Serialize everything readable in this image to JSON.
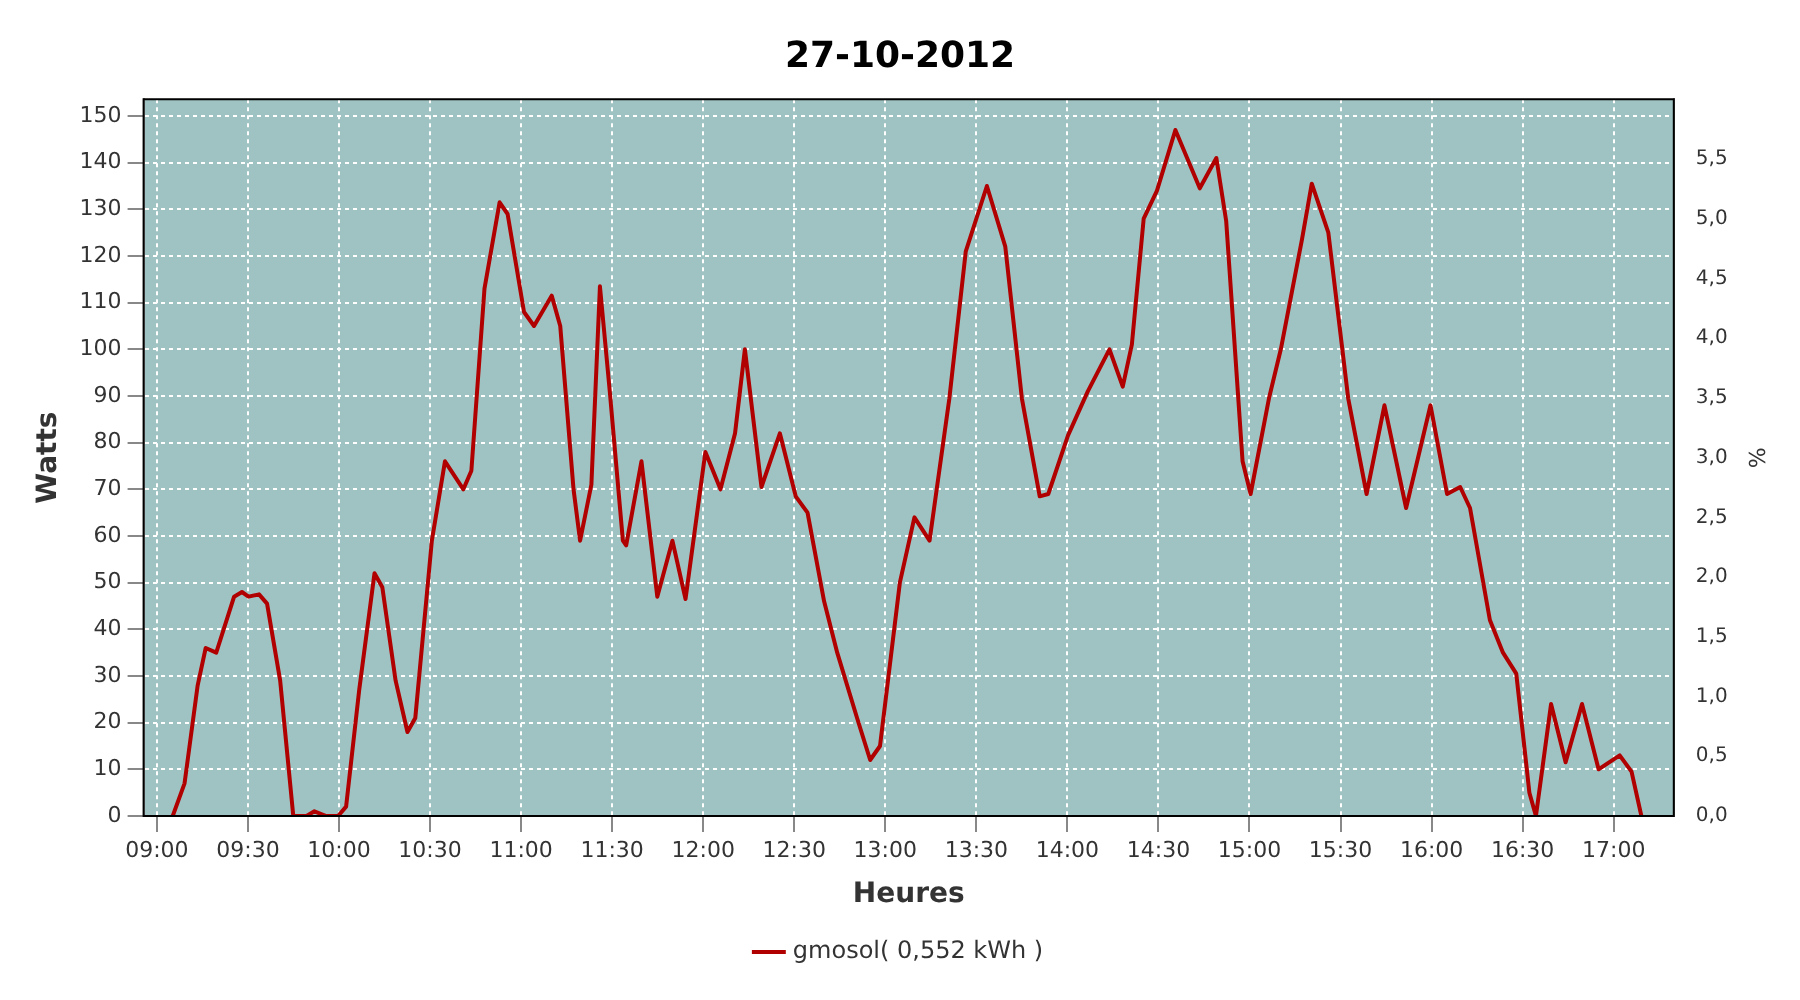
{
  "chart_data": {
    "type": "line",
    "title": "27-10-2012",
    "xlabel": "Heures",
    "ylabel": "Watts",
    "y2label": "%",
    "series": [
      {
        "name": "gmosol( 0,552 kWh )",
        "color": "#b00000",
        "x": [
          9.087,
          9.152,
          9.224,
          9.268,
          9.326,
          9.424,
          9.467,
          9.503,
          9.561,
          9.605,
          9.677,
          9.749,
          9.822,
          9.865,
          9.93,
          9.995,
          10.039,
          10.111,
          10.195,
          10.238,
          10.311,
          10.376,
          10.419,
          10.51,
          10.582,
          10.683,
          10.727,
          10.799,
          10.882,
          10.926,
          11.016,
          11.071,
          11.168,
          11.215,
          11.288,
          11.324,
          11.386,
          11.433,
          11.487,
          11.559,
          11.577,
          11.661,
          11.748,
          11.831,
          11.903,
          12.012,
          12.095,
          12.175,
          12.229,
          12.32,
          12.421,
          12.508,
          12.573,
          12.664,
          12.736,
          12.845,
          12.917,
          12.971,
          13.08,
          13.16,
          13.243,
          13.352,
          13.442,
          13.558,
          13.659,
          13.75,
          13.848,
          13.895,
          14.003,
          14.112,
          14.231,
          14.304,
          14.354,
          14.419,
          14.492,
          14.593,
          14.727,
          14.818,
          14.872,
          14.962,
          15.006,
          15.107,
          15.172,
          15.288,
          15.342,
          15.433,
          15.542,
          15.643,
          15.741,
          15.86,
          15.994,
          16.085,
          16.157,
          16.211,
          16.32,
          16.392,
          16.465,
          16.537,
          16.573,
          16.656,
          16.736,
          16.826,
          16.917,
          17.033,
          17.098,
          17.152
        ],
        "values": [
          0,
          7,
          28,
          36,
          35,
          47,
          48,
          47,
          47.5,
          45.5,
          29,
          0,
          0,
          1,
          0,
          0,
          2,
          27,
          52,
          49,
          29,
          18,
          21,
          59,
          76,
          70,
          74,
          113,
          131.5,
          129,
          108,
          105,
          111.5,
          105,
          70,
          59,
          71,
          113.5,
          91,
          59,
          58,
          76,
          47,
          59,
          46.5,
          78,
          70,
          82,
          100,
          70.5,
          82,
          68.5,
          65,
          46,
          35,
          21,
          12,
          15,
          50,
          64,
          59,
          89.5,
          121,
          135,
          122,
          89.5,
          68.5,
          69,
          81.5,
          91,
          100,
          92,
          101,
          128,
          134,
          147,
          134.5,
          141,
          127.5,
          76,
          69,
          89.5,
          100,
          123.5,
          135.5,
          125,
          89.5,
          69,
          88,
          66,
          88,
          69,
          70.5,
          66,
          42,
          35,
          30.5,
          5,
          0,
          24,
          11.5,
          24,
          10,
          13,
          9.5,
          0
        ]
      }
    ],
    "xlim": [
      8.927,
      17.33
    ],
    "xticks": [
      {
        "value": 9,
        "label": "09:00"
      },
      {
        "value": 9.5,
        "label": "09:30"
      },
      {
        "value": 10,
        "label": "10:00"
      },
      {
        "value": 10.5,
        "label": "10:30"
      },
      {
        "value": 11,
        "label": "11:00"
      },
      {
        "value": 11.5,
        "label": "11:30"
      },
      {
        "value": 12,
        "label": "12:00"
      },
      {
        "value": 12.5,
        "label": "12:30"
      },
      {
        "value": 13,
        "label": "13:00"
      },
      {
        "value": 13.5,
        "label": "13:30"
      },
      {
        "value": 14,
        "label": "14:00"
      },
      {
        "value": 14.5,
        "label": "14:30"
      },
      {
        "value": 15,
        "label": "15:00"
      },
      {
        "value": 15.5,
        "label": "15:30"
      },
      {
        "value": 16,
        "label": "16:00"
      },
      {
        "value": 16.5,
        "label": "16:30"
      },
      {
        "value": 17,
        "label": "17:00"
      }
    ],
    "ylim": [
      0,
      153.6
    ],
    "yticks": [
      0,
      10,
      20,
      30,
      40,
      50,
      60,
      70,
      80,
      90,
      100,
      110,
      120,
      130,
      140,
      150
    ],
    "y2lim": [
      0,
      6.0
    ],
    "y2ticks": [
      {
        "value": 0,
        "label": "0,0"
      },
      {
        "value": 0.5,
        "label": "0,5"
      },
      {
        "value": 1,
        "label": "1,0"
      },
      {
        "value": 1.5,
        "label": "1,5"
      },
      {
        "value": 2,
        "label": "2,0"
      },
      {
        "value": 2.5,
        "label": "2,5"
      },
      {
        "value": 3,
        "label": "3,0"
      },
      {
        "value": 3.5,
        "label": "3,5"
      },
      {
        "value": 4,
        "label": "4,0"
      },
      {
        "value": 4.5,
        "label": "4,5"
      },
      {
        "value": 5,
        "label": "5,0"
      },
      {
        "value": 5.5,
        "label": "5,5"
      }
    ],
    "grid": true,
    "legend": "bottom",
    "marker": "none",
    "line_style": "solid"
  }
}
